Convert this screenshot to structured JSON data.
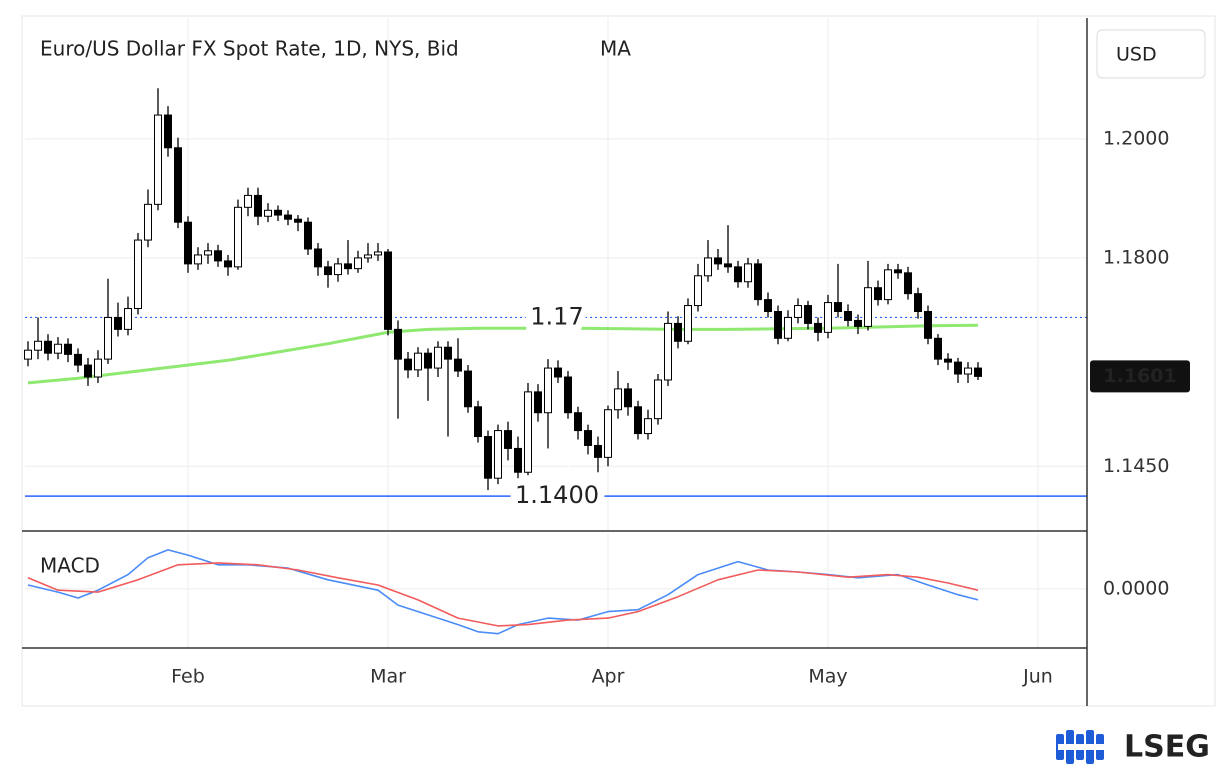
{
  "chart_data": [
    {
      "type": "candlestick",
      "title": "Euro/US Dollar FX Spot Rate, 1D, NYS, Bid",
      "currency": "USD",
      "last_price": 1.1601,
      "rise_color": "#ffffff",
      "fall_color": "#000000",
      "outline_color": "#000000",
      "xlim": [
        -0.3,
        105.9
      ],
      "xticks": [
        {
          "value": 16,
          "label": "Feb"
        },
        {
          "value": 36,
          "label": "Mar"
        },
        {
          "value": 58,
          "label": "Apr"
        },
        {
          "value": 80,
          "label": "May"
        },
        {
          "value": 101,
          "label": "Jun"
        }
      ],
      "ylim": [
        1.1343,
        1.2203
      ],
      "yticks": [
        {
          "value": 1.2,
          "label": "1.2000"
        },
        {
          "value": 1.18,
          "label": "1.1800"
        },
        {
          "value": 1.145,
          "label": "1.1450"
        }
      ],
      "grid": true,
      "levels": [
        {
          "value": 1.17,
          "style": "dotted",
          "color": "#2962ff"
        },
        {
          "value": 1.14,
          "label": "1.1400",
          "style": "solid",
          "color": "#2962ff"
        }
      ],
      "open": [
        1.163,
        1.1645,
        1.166,
        1.164,
        1.1655,
        1.1638,
        1.162,
        1.16,
        1.163,
        1.17,
        1.168,
        1.1715,
        1.183,
        1.189,
        1.204,
        1.1985,
        1.186,
        1.179,
        1.1805,
        1.1812,
        1.1795,
        1.1785,
        1.1885,
        1.1905,
        1.187,
        1.188,
        1.1872,
        1.1865,
        1.186,
        1.1815,
        1.1785,
        1.1772,
        1.179,
        1.1782,
        1.18,
        1.1805,
        1.181,
        1.168,
        1.163,
        1.1612,
        1.164,
        1.1615,
        1.165,
        1.163,
        1.161,
        1.155,
        1.15,
        1.143,
        1.151,
        1.148,
        1.144,
        1.1575,
        1.154,
        1.1615,
        1.16,
        1.154,
        1.151,
        1.1485,
        1.1465,
        1.1545,
        1.158,
        1.155,
        1.1505,
        1.153,
        1.1595,
        1.169,
        1.166,
        1.172,
        1.177,
        1.18,
        1.179,
        1.1785,
        1.176,
        1.179,
        1.173,
        1.171,
        1.1665,
        1.17,
        1.172,
        1.169,
        1.1675,
        1.1725,
        1.171,
        1.1695,
        1.1685,
        1.175,
        1.173,
        1.178,
        1.1775,
        1.174,
        1.171,
        1.1665,
        1.163,
        1.1625,
        1.1605,
        1.1615
      ],
      "high": [
        1.166,
        1.17,
        1.1672,
        1.1667,
        1.1665,
        1.1648,
        1.1632,
        1.1645,
        1.1765,
        1.1725,
        1.1735,
        1.1842,
        1.1915,
        1.2085,
        1.2055,
        1.2002,
        1.187,
        1.1818,
        1.1825,
        1.1822,
        1.1805,
        1.1898,
        1.1918,
        1.1918,
        1.1892,
        1.1888,
        1.188,
        1.1872,
        1.1868,
        1.1825,
        1.1795,
        1.18,
        1.183,
        1.1812,
        1.1825,
        1.1825,
        1.1815,
        1.1695,
        1.1642,
        1.165,
        1.1648,
        1.166,
        1.166,
        1.1665,
        1.162,
        1.156,
        1.151,
        1.152,
        1.1525,
        1.15,
        1.159,
        1.1588,
        1.163,
        1.1628,
        1.161,
        1.155,
        1.152,
        1.15,
        1.1552,
        1.161,
        1.159,
        1.156,
        1.1545,
        1.1605,
        1.171,
        1.1702,
        1.1732,
        1.179,
        1.183,
        1.1815,
        1.1855,
        1.1795,
        1.18,
        1.1798,
        1.1742,
        1.172,
        1.1712,
        1.1732,
        1.1728,
        1.17,
        1.1738,
        1.179,
        1.1722,
        1.1705,
        1.1795,
        1.1762,
        1.179,
        1.179,
        1.1785,
        1.175,
        1.172,
        1.1672,
        1.164,
        1.1632,
        1.1625,
        1.1625
      ],
      "low": [
        1.1618,
        1.163,
        1.1628,
        1.163,
        1.1625,
        1.1608,
        1.1585,
        1.159,
        1.1622,
        1.1668,
        1.167,
        1.1705,
        1.1818,
        1.188,
        1.197,
        1.185,
        1.1775,
        1.178,
        1.179,
        1.1785,
        1.177,
        1.178,
        1.187,
        1.1855,
        1.186,
        1.1862,
        1.1855,
        1.1845,
        1.1805,
        1.177,
        1.175,
        1.176,
        1.1772,
        1.1775,
        1.1792,
        1.1795,
        1.167,
        1.153,
        1.1598,
        1.16,
        1.156,
        1.16,
        1.15,
        1.16,
        1.154,
        1.149,
        1.141,
        1.142,
        1.146,
        1.143,
        1.1435,
        1.1525,
        1.148,
        1.159,
        1.153,
        1.1495,
        1.147,
        1.144,
        1.145,
        1.153,
        1.1535,
        1.1495,
        1.1495,
        1.152,
        1.1585,
        1.1648,
        1.1655,
        1.171,
        1.176,
        1.178,
        1.1775,
        1.175,
        1.175,
        1.172,
        1.17,
        1.1655,
        1.166,
        1.169,
        1.168,
        1.166,
        1.1665,
        1.17,
        1.1685,
        1.1672,
        1.1678,
        1.172,
        1.1722,
        1.1765,
        1.173,
        1.1698,
        1.1655,
        1.162,
        1.1612,
        1.159,
        1.159,
        1.1595
      ],
      "close": [
        1.1645,
        1.166,
        1.164,
        1.1655,
        1.1638,
        1.162,
        1.16,
        1.163,
        1.17,
        1.168,
        1.1715,
        1.183,
        1.189,
        1.204,
        1.1985,
        1.186,
        1.179,
        1.1805,
        1.1812,
        1.1795,
        1.1785,
        1.1885,
        1.1905,
        1.187,
        1.188,
        1.1872,
        1.1865,
        1.186,
        1.1815,
        1.1785,
        1.1772,
        1.179,
        1.1782,
        1.18,
        1.1805,
        1.181,
        1.168,
        1.163,
        1.1612,
        1.164,
        1.1615,
        1.165,
        1.163,
        1.161,
        1.155,
        1.15,
        1.143,
        1.151,
        1.148,
        1.144,
        1.1575,
        1.154,
        1.1615,
        1.16,
        1.154,
        1.151,
        1.1485,
        1.1465,
        1.1545,
        1.158,
        1.155,
        1.1505,
        1.153,
        1.1595,
        1.169,
        1.166,
        1.172,
        1.177,
        1.18,
        1.179,
        1.1785,
        1.176,
        1.179,
        1.173,
        1.171,
        1.1665,
        1.17,
        1.172,
        1.169,
        1.1675,
        1.1725,
        1.171,
        1.1695,
        1.1685,
        1.175,
        1.173,
        1.178,
        1.1775,
        1.174,
        1.171,
        1.1665,
        1.163,
        1.1625,
        1.1605,
        1.1615,
        1.1601
      ],
      "series": [
        {
          "name": "MA",
          "color": "#8fe870",
          "x": [
            0,
            5,
            10,
            15,
            20,
            25,
            30,
            36,
            40,
            45,
            50,
            55,
            60,
            65,
            70,
            75,
            80,
            85,
            90,
            95
          ],
          "values": [
            1.159,
            1.1598,
            1.1608,
            1.1618,
            1.1628,
            1.1642,
            1.1656,
            1.1675,
            1.168,
            1.1682,
            1.1682,
            1.1682,
            1.1681,
            1.168,
            1.168,
            1.1681,
            1.1682,
            1.1684,
            1.1686,
            1.1687
          ]
        }
      ]
    },
    {
      "type": "line",
      "title": "MACD",
      "ylim": [
        -0.0091,
        0.0086
      ],
      "yticks": [
        {
          "value": 0,
          "label": "0.0000"
        }
      ],
      "series": [
        {
          "color": "#4a8cf7",
          "x": [
            0,
            3,
            5,
            7,
            10,
            12,
            14,
            16,
            19,
            22,
            26,
            30,
            35,
            37,
            40,
            43,
            45,
            47,
            49,
            52,
            55,
            58,
            61,
            64,
            67,
            71,
            74,
            77,
            80,
            83,
            87,
            90,
            93,
            95
          ],
          "values": [
            0.0006,
            -0.0005,
            -0.0014,
            -0.0002,
            0.0022,
            0.0048,
            0.006,
            0.0052,
            0.0037,
            0.0037,
            0.0032,
            0.0014,
            -0.0002,
            -0.0025,
            -0.004,
            -0.0055,
            -0.0066,
            -0.0069,
            -0.0055,
            -0.0045,
            -0.0048,
            -0.0035,
            -0.0032,
            -0.0009,
            0.0022,
            0.0042,
            0.0029,
            0.0026,
            0.0022,
            0.0017,
            0.0022,
            0.0006,
            -0.0009,
            -0.0017
          ]
        },
        {
          "color": "#f25c5c",
          "x": [
            0,
            3,
            7,
            11,
            15,
            19,
            23,
            27,
            31,
            35,
            39,
            43,
            47,
            50,
            54,
            58,
            61,
            65,
            69,
            73,
            77,
            82,
            86,
            89,
            92,
            95
          ],
          "values": [
            0.0017,
            -0.0002,
            -0.0005,
            0.0014,
            0.0037,
            0.004,
            0.0037,
            0.0029,
            0.0017,
            0.0006,
            -0.0017,
            -0.0045,
            -0.0057,
            -0.0055,
            -0.0048,
            -0.0045,
            -0.0035,
            -0.0012,
            0.0014,
            0.0029,
            0.0026,
            0.0018,
            0.0022,
            0.0018,
            0.0009,
            -0.0002
          ]
        }
      ]
    }
  ],
  "logo": "LSEG"
}
